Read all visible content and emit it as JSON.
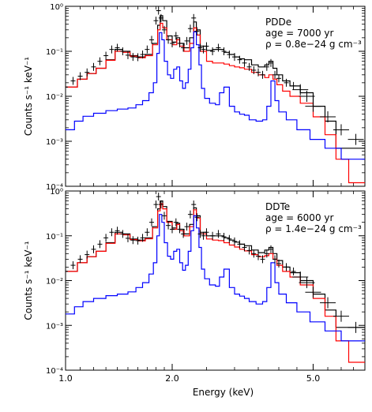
{
  "chart_data": [
    {
      "type": "line",
      "id": "top",
      "title": "",
      "xlabel": "",
      "ylabel": "Counts s⁻¹ keV⁻¹",
      "xscale": "log",
      "yscale": "log",
      "xlim": [
        1.0,
        7.0
      ],
      "ylim": [
        0.0001,
        1.0
      ],
      "xticks": [
        1.0,
        2.0,
        5.0
      ],
      "yticks": [
        {
          "v": 1,
          "label": "10⁰"
        },
        {
          "v": 0.1,
          "label": "10⁻¹"
        },
        {
          "v": 0.01,
          "label": "10⁻²"
        },
        {
          "v": 0.001,
          "label": "10⁻³"
        },
        {
          "v": 0.0001,
          "label": "10⁻⁴"
        }
      ],
      "annotation": [
        "PDDe",
        "age = 7000 yr",
        "ρ = 0.8e−24 g cm⁻³"
      ],
      "data_points": {
        "x": [
          1.0,
          1.05,
          1.1,
          1.15,
          1.2,
          1.25,
          1.3,
          1.35,
          1.4,
          1.45,
          1.5,
          1.55,
          1.6,
          1.65,
          1.7,
          1.75,
          1.8,
          1.83,
          1.86,
          1.9,
          1.95,
          2.0,
          2.05,
          2.1,
          2.15,
          2.2,
          2.25,
          2.3,
          2.35,
          2.4,
          2.45,
          2.5,
          2.6,
          2.7,
          2.8,
          2.9,
          3.0,
          3.1,
          3.2,
          3.3,
          3.4,
          3.5,
          3.6,
          3.7,
          3.8,
          3.9,
          4.0,
          4.2,
          4.4,
          4.6,
          4.8,
          5.0,
          5.5,
          6.0,
          6.6
        ],
        "y": [
          0.016,
          0.022,
          0.028,
          0.034,
          0.045,
          0.06,
          0.08,
          0.11,
          0.12,
          0.1,
          0.082,
          0.075,
          0.074,
          0.085,
          0.11,
          0.18,
          0.48,
          0.8,
          0.55,
          0.3,
          0.18,
          0.15,
          0.22,
          0.15,
          0.12,
          0.17,
          0.32,
          0.55,
          0.28,
          0.12,
          0.11,
          0.13,
          0.1,
          0.12,
          0.1,
          0.085,
          0.075,
          0.065,
          0.055,
          0.045,
          0.038,
          0.034,
          0.03,
          0.045,
          0.055,
          0.03,
          0.025,
          0.02,
          0.017,
          0.014,
          0.01,
          0.006,
          0.0035,
          0.0018,
          0.0011
        ]
      },
      "models": [
        {
          "color": "#000000",
          "x": [
            1.0,
            1.08,
            1.15,
            1.22,
            1.3,
            1.38,
            1.45,
            1.52,
            1.6,
            1.68,
            1.76,
            1.82,
            1.85,
            1.88,
            1.93,
            2.0,
            2.06,
            2.1,
            2.16,
            2.24,
            2.3,
            2.34,
            2.4,
            2.5,
            2.6,
            2.7,
            2.8,
            2.9,
            3.0,
            3.1,
            3.2,
            3.35,
            3.5,
            3.65,
            3.75,
            3.85,
            3.95,
            4.1,
            4.3,
            4.6,
            5.0,
            5.4,
            5.8,
            6.3,
            7.0
          ],
          "y": [
            0.016,
            0.024,
            0.032,
            0.042,
            0.065,
            0.11,
            0.1,
            0.08,
            0.075,
            0.085,
            0.15,
            0.38,
            0.62,
            0.48,
            0.22,
            0.16,
            0.2,
            0.15,
            0.12,
            0.2,
            0.45,
            0.3,
            0.13,
            0.105,
            0.11,
            0.11,
            0.095,
            0.085,
            0.075,
            0.068,
            0.065,
            0.05,
            0.045,
            0.05,
            0.06,
            0.042,
            0.03,
            0.022,
            0.017,
            0.012,
            0.006,
            0.0028,
            0.0007,
            0.0007,
            0.0007
          ]
        },
        {
          "color": "#ff0000",
          "x": [
            1.0,
            1.08,
            1.15,
            1.22,
            1.3,
            1.38,
            1.45,
            1.52,
            1.6,
            1.68,
            1.76,
            1.82,
            1.85,
            1.88,
            1.93,
            2.0,
            2.06,
            2.1,
            2.16,
            2.24,
            2.3,
            2.34,
            2.4,
            2.5,
            2.6,
            2.7,
            2.8,
            2.9,
            3.0,
            3.1,
            3.2,
            3.35,
            3.5,
            3.65,
            3.75,
            3.85,
            3.95,
            4.1,
            4.3,
            4.6,
            5.0,
            5.4,
            5.8,
            6.3,
            7.0
          ],
          "y": [
            0.016,
            0.024,
            0.032,
            0.042,
            0.063,
            0.1,
            0.095,
            0.078,
            0.072,
            0.08,
            0.14,
            0.3,
            0.42,
            0.33,
            0.18,
            0.14,
            0.18,
            0.13,
            0.1,
            0.15,
            0.33,
            0.23,
            0.1,
            0.06,
            0.055,
            0.055,
            0.052,
            0.048,
            0.045,
            0.043,
            0.04,
            0.034,
            0.03,
            0.026,
            0.03,
            0.024,
            0.018,
            0.013,
            0.01,
            0.007,
            0.0035,
            0.0014,
            0.0004,
            0.00012,
            0.00012
          ]
        },
        {
          "color": "#0000ff",
          "x": [
            1.0,
            1.06,
            1.12,
            1.2,
            1.3,
            1.4,
            1.5,
            1.58,
            1.65,
            1.72,
            1.77,
            1.81,
            1.84,
            1.87,
            1.9,
            1.94,
            1.98,
            2.02,
            2.06,
            2.1,
            2.14,
            2.18,
            2.22,
            2.26,
            2.3,
            2.34,
            2.38,
            2.42,
            2.47,
            2.55,
            2.65,
            2.72,
            2.8,
            2.9,
            3.0,
            3.1,
            3.2,
            3.3,
            3.45,
            3.6,
            3.7,
            3.8,
            3.9,
            4.0,
            4.2,
            4.5,
            4.9,
            5.4,
            6.0,
            7.0
          ],
          "y": [
            0.0018,
            0.0028,
            0.0036,
            0.0042,
            0.0048,
            0.0052,
            0.0055,
            0.0065,
            0.008,
            0.012,
            0.02,
            0.09,
            0.26,
            0.18,
            0.06,
            0.03,
            0.025,
            0.04,
            0.045,
            0.022,
            0.015,
            0.02,
            0.04,
            0.12,
            0.27,
            0.14,
            0.05,
            0.015,
            0.009,
            0.007,
            0.0065,
            0.012,
            0.016,
            0.006,
            0.0045,
            0.004,
            0.0038,
            0.003,
            0.0028,
            0.003,
            0.006,
            0.022,
            0.008,
            0.0045,
            0.003,
            0.0018,
            0.0011,
            0.0007,
            0.0004,
            0.0004
          ]
        }
      ]
    },
    {
      "type": "line",
      "id": "bottom",
      "title": "",
      "xlabel": "Energy (keV)",
      "ylabel": "Counts s⁻¹ keV⁻¹",
      "xscale": "log",
      "yscale": "log",
      "xlim": [
        1.0,
        7.0
      ],
      "ylim": [
        0.0001,
        1.0
      ],
      "xticks": [
        1.0,
        2.0,
        5.0
      ],
      "yticks": [
        {
          "v": 1,
          "label": "10⁰"
        },
        {
          "v": 0.1,
          "label": "10⁻¹"
        },
        {
          "v": 0.01,
          "label": "10⁻²"
        },
        {
          "v": 0.001,
          "label": "10⁻³"
        },
        {
          "v": 0.0001,
          "label": "10⁻⁴"
        }
      ],
      "annotation": [
        "DDTe",
        "age = 6000 yr",
        "ρ = 1.4e−24 g cm⁻³"
      ],
      "data_points": {
        "x": [
          1.0,
          1.05,
          1.1,
          1.15,
          1.2,
          1.25,
          1.3,
          1.35,
          1.4,
          1.45,
          1.5,
          1.55,
          1.6,
          1.65,
          1.7,
          1.75,
          1.8,
          1.83,
          1.86,
          1.9,
          1.95,
          2.0,
          2.05,
          2.1,
          2.15,
          2.2,
          2.25,
          2.3,
          2.35,
          2.4,
          2.45,
          2.5,
          2.6,
          2.7,
          2.8,
          2.9,
          3.0,
          3.1,
          3.2,
          3.3,
          3.4,
          3.5,
          3.6,
          3.7,
          3.8,
          3.9,
          4.0,
          4.2,
          4.4,
          4.6,
          4.8,
          5.0,
          5.5,
          6.0,
          6.6
        ],
        "y": [
          0.016,
          0.022,
          0.03,
          0.038,
          0.05,
          0.065,
          0.09,
          0.12,
          0.13,
          0.11,
          0.088,
          0.08,
          0.078,
          0.09,
          0.12,
          0.2,
          0.5,
          0.75,
          0.5,
          0.28,
          0.17,
          0.14,
          0.2,
          0.14,
          0.11,
          0.16,
          0.3,
          0.5,
          0.26,
          0.11,
          0.1,
          0.12,
          0.1,
          0.11,
          0.095,
          0.085,
          0.075,
          0.065,
          0.055,
          0.047,
          0.04,
          0.035,
          0.03,
          0.04,
          0.05,
          0.03,
          0.024,
          0.02,
          0.016,
          0.012,
          0.009,
          0.0055,
          0.0032,
          0.0016,
          0.0009
        ]
      },
      "models": [
        {
          "color": "#000000",
          "x": [
            1.0,
            1.08,
            1.15,
            1.22,
            1.3,
            1.38,
            1.45,
            1.52,
            1.6,
            1.68,
            1.76,
            1.82,
            1.85,
            1.88,
            1.93,
            2.0,
            2.06,
            2.1,
            2.16,
            2.24,
            2.3,
            2.34,
            2.4,
            2.5,
            2.6,
            2.7,
            2.8,
            2.9,
            3.0,
            3.1,
            3.2,
            3.35,
            3.5,
            3.65,
            3.75,
            3.85,
            3.95,
            4.1,
            4.3,
            4.6,
            5.0,
            5.4,
            5.8,
            6.3,
            7.0
          ],
          "y": [
            0.016,
            0.025,
            0.034,
            0.045,
            0.07,
            0.12,
            0.11,
            0.085,
            0.08,
            0.09,
            0.16,
            0.4,
            0.6,
            0.45,
            0.21,
            0.15,
            0.19,
            0.14,
            0.11,
            0.18,
            0.42,
            0.28,
            0.12,
            0.1,
            0.1,
            0.1,
            0.09,
            0.08,
            0.072,
            0.065,
            0.06,
            0.048,
            0.042,
            0.048,
            0.055,
            0.04,
            0.028,
            0.02,
            0.015,
            0.01,
            0.005,
            0.0022,
            0.0009,
            0.0009,
            0.0009
          ]
        },
        {
          "color": "#ff0000",
          "x": [
            1.0,
            1.08,
            1.15,
            1.22,
            1.3,
            1.38,
            1.45,
            1.52,
            1.6,
            1.68,
            1.76,
            1.82,
            1.85,
            1.88,
            1.93,
            2.0,
            2.06,
            2.1,
            2.16,
            2.24,
            2.3,
            2.34,
            2.4,
            2.5,
            2.6,
            2.7,
            2.8,
            2.9,
            3.0,
            3.1,
            3.2,
            3.35,
            3.5,
            3.65,
            3.75,
            3.85,
            3.95,
            4.1,
            4.3,
            4.6,
            5.0,
            5.4,
            5.8,
            6.3,
            7.0
          ],
          "y": [
            0.016,
            0.025,
            0.034,
            0.045,
            0.068,
            0.11,
            0.105,
            0.082,
            0.077,
            0.086,
            0.15,
            0.36,
            0.52,
            0.4,
            0.2,
            0.14,
            0.18,
            0.13,
            0.1,
            0.16,
            0.38,
            0.25,
            0.11,
            0.085,
            0.08,
            0.078,
            0.07,
            0.062,
            0.056,
            0.05,
            0.046,
            0.038,
            0.034,
            0.036,
            0.04,
            0.03,
            0.022,
            0.016,
            0.012,
            0.008,
            0.004,
            0.0016,
            0.00045,
            0.00015,
            0.00015
          ]
        },
        {
          "color": "#0000ff",
          "x": [
            1.0,
            1.06,
            1.12,
            1.2,
            1.3,
            1.4,
            1.5,
            1.58,
            1.65,
            1.72,
            1.77,
            1.81,
            1.84,
            1.87,
            1.9,
            1.94,
            1.98,
            2.02,
            2.06,
            2.1,
            2.14,
            2.18,
            2.22,
            2.26,
            2.3,
            2.34,
            2.38,
            2.42,
            2.47,
            2.55,
            2.65,
            2.72,
            2.8,
            2.9,
            3.0,
            3.1,
            3.2,
            3.3,
            3.45,
            3.6,
            3.7,
            3.8,
            3.9,
            4.0,
            4.2,
            4.5,
            4.9,
            5.4,
            6.0,
            7.0
          ],
          "y": [
            0.0018,
            0.0026,
            0.0034,
            0.004,
            0.0046,
            0.005,
            0.0056,
            0.007,
            0.009,
            0.014,
            0.025,
            0.1,
            0.3,
            0.2,
            0.07,
            0.035,
            0.03,
            0.045,
            0.05,
            0.025,
            0.017,
            0.022,
            0.045,
            0.13,
            0.28,
            0.15,
            0.055,
            0.018,
            0.011,
            0.008,
            0.0075,
            0.012,
            0.018,
            0.007,
            0.005,
            0.0045,
            0.004,
            0.0034,
            0.003,
            0.0034,
            0.007,
            0.025,
            0.009,
            0.005,
            0.0032,
            0.002,
            0.0012,
            0.00075,
            0.00045,
            0.00045
          ]
        }
      ]
    }
  ]
}
